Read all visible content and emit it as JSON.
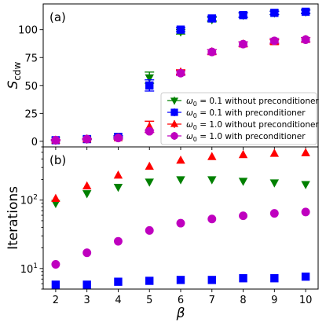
{
  "chart_data": {
    "type": "scatter",
    "x_label": "β",
    "x_ticks": [
      2,
      3,
      4,
      5,
      6,
      7,
      8,
      9,
      10
    ],
    "xlim": [
      1.6,
      10.4
    ],
    "series_styles": [
      {
        "key": "g_nopre",
        "color": "#008000",
        "marker": "triangle-down",
        "errorbars": true
      },
      {
        "key": "b_pre",
        "color": "#0000ff",
        "marker": "square",
        "errorbars": true
      },
      {
        "key": "r_nopre",
        "color": "#ff0000",
        "marker": "triangle-up",
        "errorbars": true
      },
      {
        "key": "m_pre",
        "color": "#bf00bf",
        "marker": "circle",
        "errorbars": true
      }
    ],
    "legend": {
      "position": "lower-right of panel (a)",
      "entries": [
        {
          "series": "g_nopre",
          "prefix": "ω",
          "sub": "0",
          "value": " = 0.1",
          "desc": "without preconditioner"
        },
        {
          "series": "b_pre",
          "prefix": "ω",
          "sub": "0",
          "value": " = 0.1",
          "desc": "   with    preconditioner"
        },
        {
          "series": "r_nopre",
          "prefix": "ω",
          "sub": "0",
          "value": " = 1.0",
          "desc": "without preconditioner"
        },
        {
          "series": "m_pre",
          "prefix": "ω",
          "sub": "0",
          "value": " = 1.0",
          "desc": "   with    preconditioner"
        }
      ]
    },
    "panels": [
      {
        "label": "(a)",
        "ylabel": {
          "main": "S",
          "sub": "cdw"
        },
        "yscale": "linear",
        "ylim": [
          -5,
          123
        ],
        "y_ticks": [
          0,
          25,
          50,
          75,
          100
        ],
        "x": [
          2,
          3,
          4,
          5,
          6,
          7,
          8,
          9,
          10
        ],
        "series": [
          {
            "key": "g_nopre",
            "values": [
              1,
              2,
              4,
              57,
              98,
              109,
              113,
              115,
              116
            ],
            "errors": [
              0.5,
              0.5,
              1,
              5,
              2,
              2,
              2,
              1.5,
              1.5
            ]
          },
          {
            "key": "b_pre",
            "values": [
              1,
              2,
              4,
              50,
              100,
              110,
              113,
              115,
              116
            ],
            "errors": [
              0.5,
              0.5,
              1,
              5,
              2,
              2,
              2,
              1.5,
              1.5
            ]
          },
          {
            "key": "r_nopre",
            "values": [
              1,
              2,
              3,
              13,
              62,
              80,
              87,
              89,
              91
            ],
            "errors": [
              0.5,
              0.5,
              1,
              5,
              2,
              2,
              2,
              2,
              2
            ]
          },
          {
            "key": "m_pre",
            "values": [
              1,
              2,
              3,
              9,
              61,
              80,
              87,
              90,
              91
            ],
            "errors": [
              0.5,
              0.5,
              1,
              1,
              2,
              2,
              2,
              2,
              2
            ]
          }
        ]
      },
      {
        "label": "(b)",
        "ylabel": {
          "main": "Iterations",
          "sub": ""
        },
        "yscale": "log",
        "ylim": [
          5,
          600
        ],
        "y_ticks": [
          {
            "value": 10,
            "base": "10",
            "exp": "1"
          },
          {
            "value": 100,
            "base": "10",
            "exp": "2"
          }
        ],
        "x": [
          2,
          3,
          4,
          5,
          6,
          7,
          8,
          9,
          10
        ],
        "series": [
          {
            "key": "g_nopre",
            "values": [
              90,
              125,
              155,
              185,
              200,
              200,
              190,
              180,
              170
            ]
          },
          {
            "key": "r_nopre",
            "values": [
              105,
              160,
              230,
              310,
              380,
              430,
              460,
              480,
              490
            ]
          },
          {
            "key": "m_pre",
            "values": [
              11.5,
              17,
              25,
              36,
              46,
              53,
              59,
              64,
              67
            ]
          },
          {
            "key": "b_pre",
            "values": [
              5.8,
              5.8,
              6.4,
              6.6,
              6.8,
              6.8,
              7.2,
              7.2,
              7.6
            ]
          }
        ]
      }
    ]
  }
}
